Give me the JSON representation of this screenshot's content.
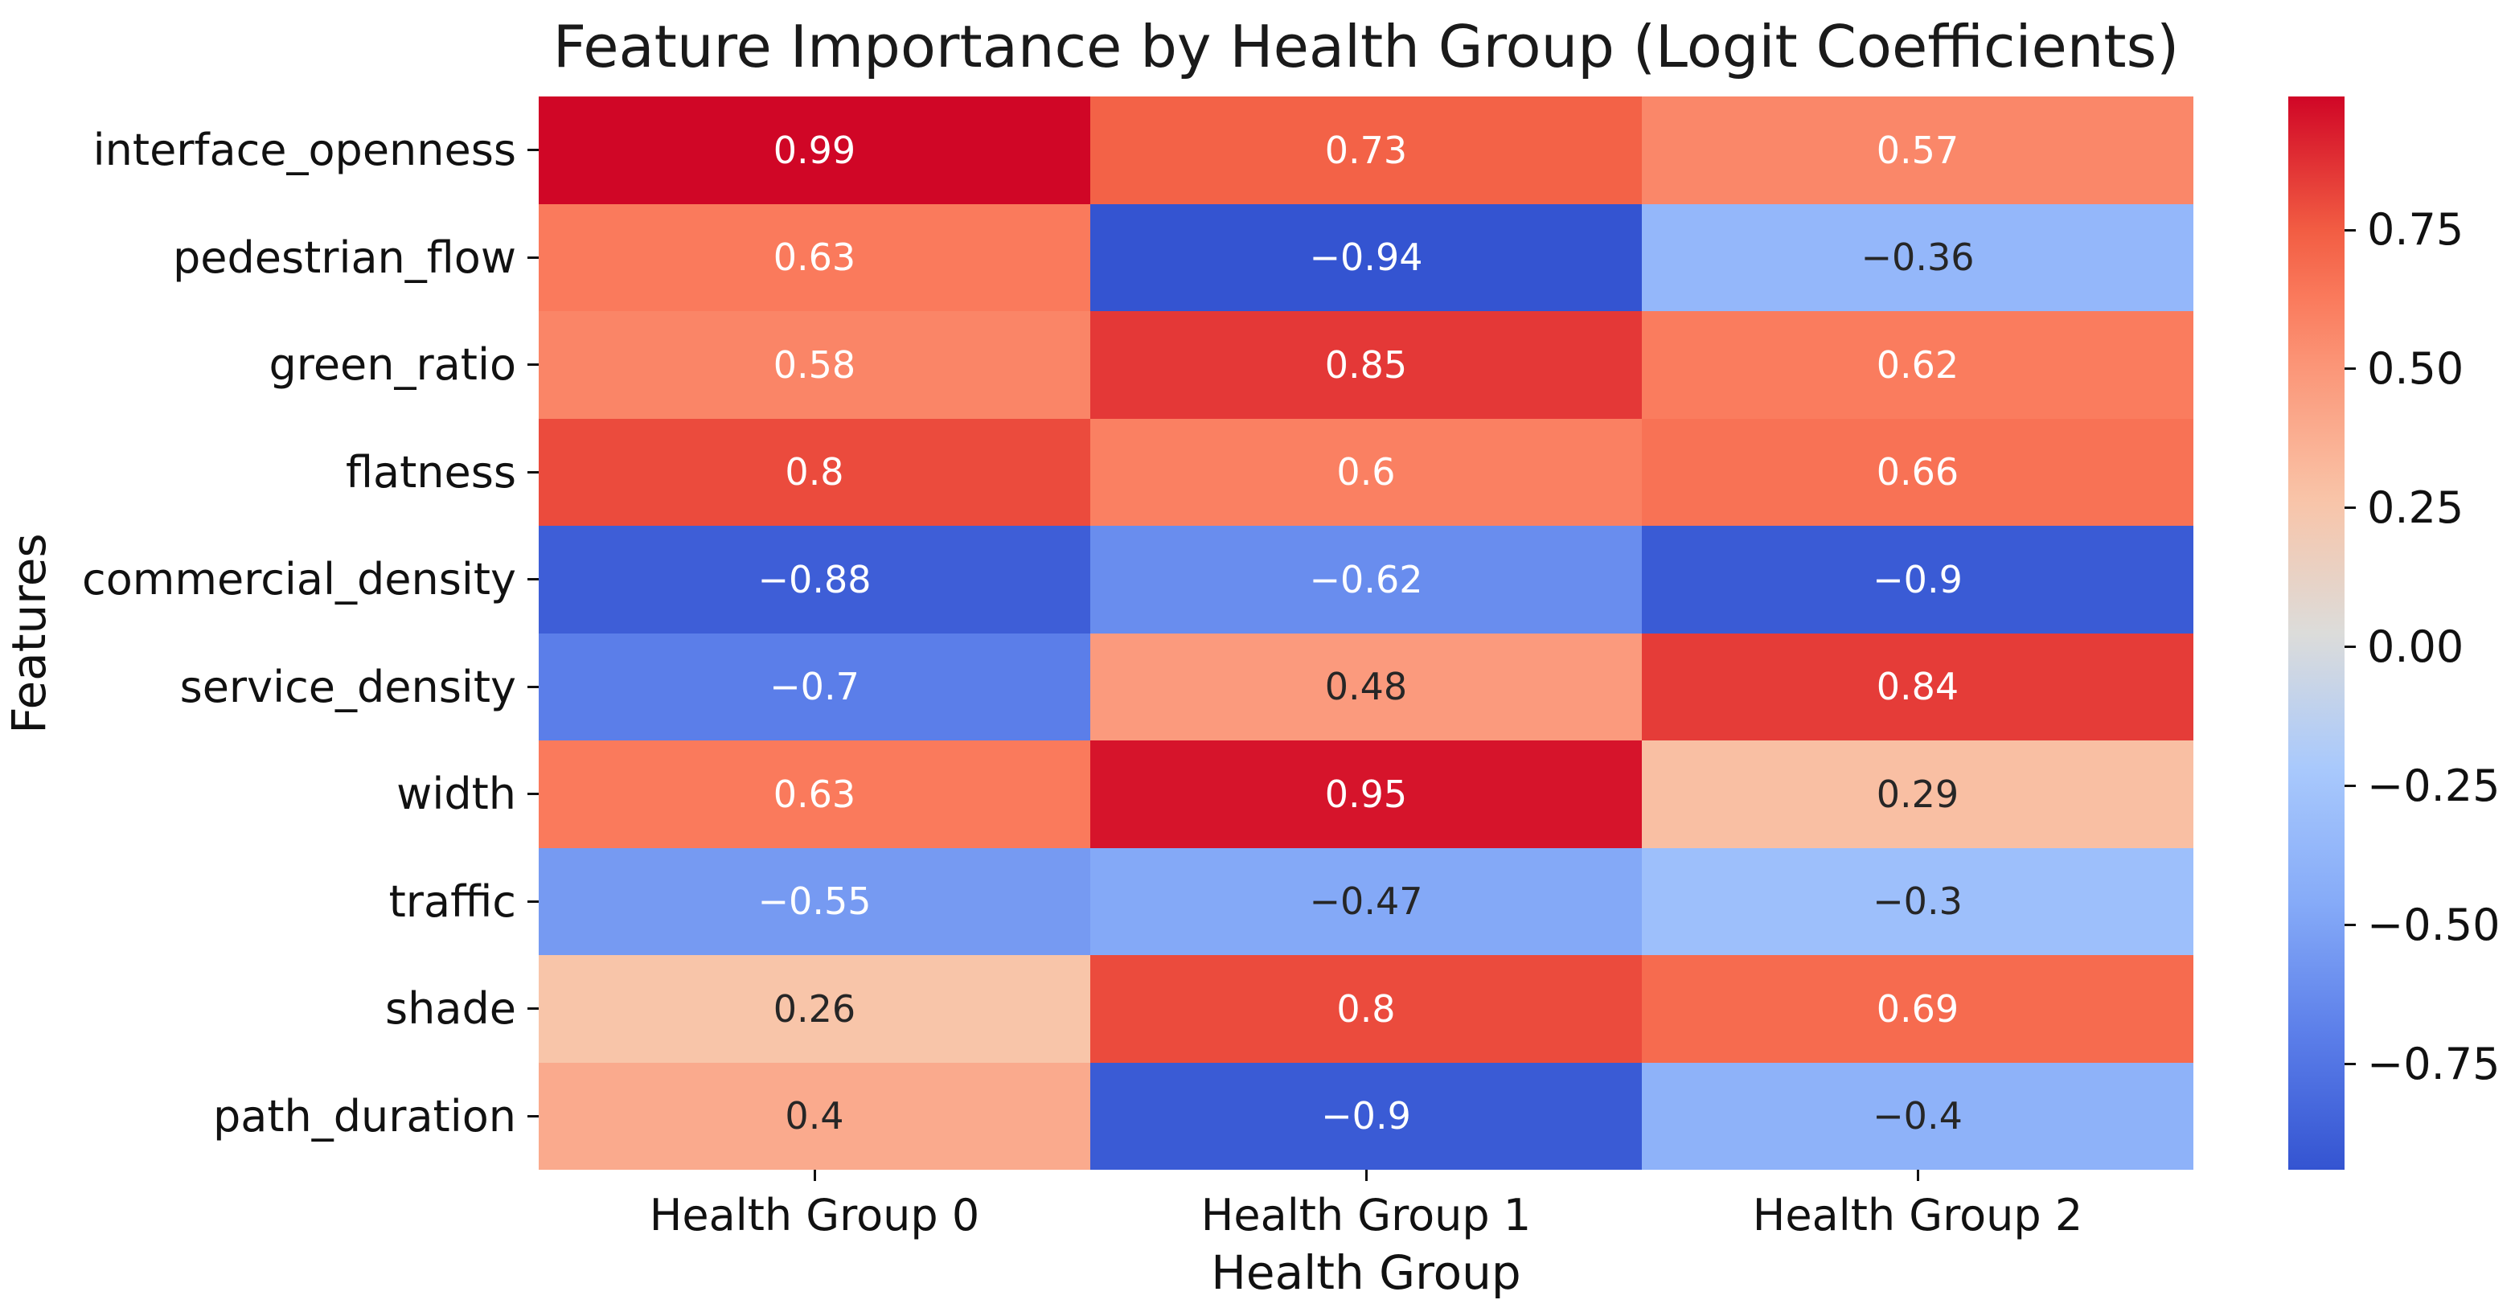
{
  "title": "Feature Importance by Health Group (Logit Coefficients)",
  "xlabel": "Health Group",
  "ylabel": "Features",
  "chart_data": {
    "type": "heatmap",
    "title": "Feature Importance by Health Group (Logit Coefficients)",
    "xlabel": "Health Group",
    "ylabel": "Features",
    "rows": [
      "interface_openness",
      "pedestrian_flow",
      "green_ratio",
      "flatness",
      "commercial_density",
      "service_density",
      "width",
      "traffic",
      "shade",
      "path_duration"
    ],
    "columns": [
      "Health Group 0",
      "Health Group 1",
      "Health Group 2"
    ],
    "cell_labels": [
      [
        "0.99",
        "0.73",
        "0.57"
      ],
      [
        "0.63",
        "−0.94",
        "−0.36"
      ],
      [
        "0.58",
        "0.85",
        "0.62"
      ],
      [
        "0.8",
        "0.6",
        "0.66"
      ],
      [
        "−0.88",
        "−0.62",
        "−0.9"
      ],
      [
        "−0.7",
        "0.48",
        "0.84"
      ],
      [
        "0.63",
        "0.95",
        "0.29"
      ],
      [
        "−0.55",
        "−0.47",
        "−0.3"
      ],
      [
        "0.26",
        "0.8",
        "0.69"
      ],
      [
        "0.4",
        "−0.9",
        "−0.4"
      ]
    ],
    "text_colors": [
      [
        "w",
        "w",
        "w"
      ],
      [
        "w",
        "w",
        "b"
      ],
      [
        "w",
        "w",
        "w"
      ],
      [
        "w",
        "w",
        "w"
      ],
      [
        "w",
        "w",
        "w"
      ],
      [
        "w",
        "b",
        "w"
      ],
      [
        "w",
        "w",
        "b"
      ],
      [
        "w",
        "b",
        "b"
      ],
      [
        "b",
        "w",
        "w"
      ],
      [
        "b",
        "w",
        "b"
      ]
    ],
    "colormap": {
      "name": "coolwarm",
      "vmin": -0.94,
      "vmax": 0.99,
      "stops": [
        [
          0.0,
          "#3454d1"
        ],
        [
          0.125,
          "#5b7ee9"
        ],
        [
          0.25,
          "#86abf8"
        ],
        [
          0.375,
          "#a9c9fc"
        ],
        [
          0.5,
          "#dcdcda"
        ],
        [
          0.625,
          "#f9c4a8"
        ],
        [
          0.75,
          "#fb9577"
        ],
        [
          0.8125,
          "#fa7a5c"
        ],
        [
          0.875,
          "#f25d43"
        ],
        [
          1.0,
          "#d00626"
        ]
      ]
    },
    "colorbar_ticks": [
      {
        "value": 0.75,
        "label": "0.75"
      },
      {
        "value": 0.5,
        "label": "0.50"
      },
      {
        "value": 0.25,
        "label": "0.25"
      },
      {
        "value": 0.0,
        "label": "0.00"
      },
      {
        "value": -0.25,
        "label": "−0.25"
      },
      {
        "value": -0.5,
        "label": "−0.50"
      },
      {
        "value": -0.75,
        "label": "−0.75"
      }
    ],
    "legend_position": "right",
    "grid": false
  }
}
